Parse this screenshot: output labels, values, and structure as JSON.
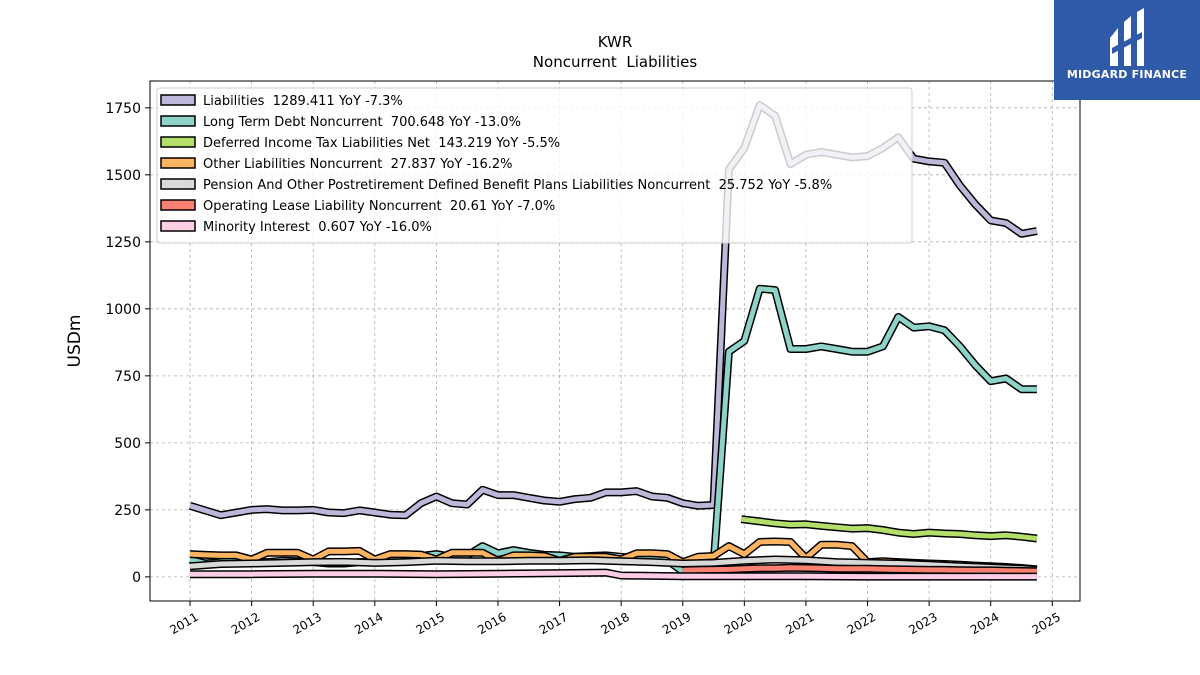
{
  "brand": {
    "name": "MIDGARD FINANCE",
    "color": "#2f5aa8"
  },
  "chart_data": {
    "type": "line",
    "title": "KWR",
    "subtitle": "Noncurrent  Liabilities",
    "xlabel": "",
    "ylabel": "USDm",
    "xlim": [
      2010.35,
      2025.45
    ],
    "ylim": [
      -90,
      1850
    ],
    "x_ticks": [
      "2011",
      "2012",
      "2013",
      "2014",
      "2015",
      "2016",
      "2017",
      "2018",
      "2019",
      "2020",
      "2021",
      "2022",
      "2023",
      "2024",
      "2025"
    ],
    "y_ticks": [
      0,
      250,
      500,
      750,
      1000,
      1250,
      1500,
      1750
    ],
    "y_tick_labels": [
      "0",
      "250",
      "500",
      "750",
      "1000",
      "1250",
      "1500",
      "1750"
    ],
    "grid": true,
    "legend_position": "top-left",
    "series": [
      {
        "name": "Liabilities  1289.411 YoY -7.3%",
        "color": "#bcb8d9",
        "x": [
          2011.0,
          2011.5,
          2012.0,
          2012.25,
          2012.5,
          2012.75,
          2013.0,
          2013.25,
          2013.5,
          2013.75,
          2014.0,
          2014.25,
          2014.5,
          2014.75,
          2015.0,
          2015.25,
          2015.5,
          2015.75,
          2016.0,
          2016.25,
          2016.5,
          2016.75,
          2017.0,
          2017.25,
          2017.5,
          2017.75,
          2018.0,
          2018.25,
          2018.5,
          2018.75,
          2019.0,
          2019.25,
          2019.5,
          2019.75,
          2020.0,
          2020.25,
          2020.5,
          2020.75,
          2021.0,
          2021.25,
          2021.5,
          2021.75,
          2022.0,
          2022.25,
          2022.5,
          2022.75,
          2023.0,
          2023.25,
          2023.5,
          2023.75,
          2024.0,
          2024.25,
          2024.5,
          2024.75
        ],
        "y": [
          265,
          230,
          250,
          253,
          248,
          248,
          250,
          240,
          238,
          248,
          240,
          232,
          230,
          275,
          300,
          275,
          270,
          325,
          305,
          305,
          295,
          285,
          280,
          290,
          295,
          315,
          315,
          320,
          300,
          295,
          275,
          265,
          268,
          1520,
          1600,
          1760,
          1720,
          1540,
          1575,
          1585,
          1575,
          1565,
          1570,
          1600,
          1640,
          1560,
          1550,
          1545,
          1460,
          1390,
          1330,
          1320,
          1280,
          1290
        ]
      },
      {
        "name": "Long Term Debt Noncurrent  700.648 YoY -13.0%",
        "color": "#8dd3c7",
        "x": [
          2011.0,
          2011.25,
          2011.5,
          2011.75,
          2012.0,
          2012.25,
          2012.5,
          2012.75,
          2013.0,
          2013.25,
          2013.5,
          2013.75,
          2014.0,
          2014.25,
          2014.5,
          2014.75,
          2015.0,
          2015.25,
          2015.5,
          2015.75,
          2016.0,
          2016.25,
          2016.5,
          2016.75,
          2017.0,
          2017.25,
          2017.5,
          2017.75,
          2018.0,
          2018.25,
          2018.5,
          2018.75,
          2019.0,
          2019.25,
          2019.5,
          2019.75,
          2020.0,
          2020.25,
          2020.5,
          2020.75,
          2021.0,
          2021.25,
          2021.5,
          2021.75,
          2022.0,
          2022.25,
          2022.5,
          2022.75,
          2023.0,
          2023.25,
          2023.5,
          2023.75,
          2024.0,
          2024.25,
          2024.5,
          2024.75
        ],
        "y": [
          65,
          50,
          55,
          60,
          55,
          55,
          60,
          58,
          55,
          50,
          50,
          55,
          60,
          75,
          80,
          78,
          85,
          75,
          80,
          115,
          88,
          100,
          90,
          82,
          80,
          75,
          78,
          80,
          75,
          70,
          65,
          62,
          20,
          30,
          40,
          840,
          880,
          1075,
          1070,
          850,
          850,
          860,
          850,
          840,
          840,
          860,
          970,
          930,
          935,
          920,
          860,
          790,
          730,
          740,
          700,
          700
        ]
      },
      {
        "name": "Deferred Income Tax Liabilities Net  143.219 YoY -5.5%",
        "color": "#b3de69",
        "x": [
          2019.95,
          2020.25,
          2020.5,
          2020.75,
          2021.0,
          2021.25,
          2021.5,
          2021.75,
          2022.0,
          2022.25,
          2022.5,
          2022.75,
          2023.0,
          2023.25,
          2023.5,
          2023.75,
          2024.0,
          2024.25,
          2024.5,
          2024.75
        ],
        "y": [
          215,
          207,
          200,
          195,
          196,
          190,
          185,
          180,
          182,
          175,
          165,
          160,
          165,
          162,
          160,
          155,
          152,
          155,
          150,
          143
        ]
      },
      {
        "name": "Other Liabilities Noncurrent  27.837 YoY -16.2%",
        "color": "#fdb462",
        "x": [
          2011.0,
          2011.25,
          2011.5,
          2011.75,
          2012.0,
          2012.25,
          2012.5,
          2012.75,
          2013.0,
          2013.25,
          2013.5,
          2013.75,
          2014.0,
          2014.25,
          2014.5,
          2014.75,
          2015.0,
          2015.25,
          2015.5,
          2015.75,
          2016.0,
          2016.25,
          2016.5,
          2016.75,
          2017.0,
          2017.25,
          2017.5,
          2017.75,
          2018.0,
          2018.25,
          2018.5,
          2018.75,
          2019.0,
          2019.25,
          2019.5,
          2019.75,
          2020.0,
          2020.25,
          2020.5,
          2020.75,
          2021.0,
          2021.25,
          2021.5,
          2021.75,
          2022.0,
          2022.25,
          2022.5,
          2022.75,
          2023.0,
          2023.25,
          2023.5,
          2023.75,
          2024.0,
          2024.25,
          2024.5,
          2024.75
        ],
        "y": [
          85,
          82,
          80,
          80,
          65,
          90,
          90,
          90,
          65,
          95,
          95,
          97,
          65,
          85,
          85,
          83,
          65,
          90,
          90,
          90,
          60,
          80,
          80,
          78,
          60,
          75,
          75,
          75,
          65,
          88,
          88,
          85,
          55,
          75,
          78,
          115,
          85,
          130,
          132,
          130,
          70,
          120,
          120,
          115,
          55,
          58,
          55,
          52,
          50,
          48,
          45,
          42,
          40,
          37,
          33,
          28
        ]
      },
      {
        "name": "Pension And Other Postretirement Defined Benefit Plans Liabilities Noncurrent  25.752 YoY -5.8%",
        "color": "#d9d9d9",
        "x": [
          2011.0,
          2011.5,
          2012.0,
          2012.5,
          2013.0,
          2013.5,
          2014.0,
          2014.5,
          2015.0,
          2015.5,
          2016.0,
          2016.5,
          2017.0,
          2017.5,
          2018.0,
          2018.5,
          2019.0,
          2019.5,
          2020.0,
          2020.5,
          2021.0,
          2021.5,
          2022.0,
          2022.5,
          2023.0,
          2023.5,
          2024.0,
          2024.5,
          2024.75
        ],
        "y": [
          40,
          48,
          50,
          52,
          55,
          56,
          52,
          55,
          60,
          58,
          58,
          60,
          60,
          62,
          58,
          55,
          50,
          52,
          60,
          65,
          62,
          55,
          52,
          50,
          45,
          40,
          35,
          30,
          26
        ]
      },
      {
        "name": "Operating Lease Liability Noncurrent  20.61 YoY -7.0%",
        "color": "#fb8072",
        "x": [
          2019.0,
          2019.25,
          2019.5,
          2019.75,
          2020.0,
          2020.25,
          2020.5,
          2020.75,
          2021.0,
          2021.25,
          2021.5,
          2021.75,
          2022.0,
          2022.25,
          2022.5,
          2022.75,
          2023.0,
          2023.25,
          2023.5,
          2023.75,
          2024.0,
          2024.25,
          2024.5,
          2024.75
        ],
        "y": [
          25,
          26,
          27,
          28,
          30,
          32,
          32,
          34,
          33,
          32,
          30,
          30,
          30,
          29,
          28,
          27,
          26,
          26,
          25,
          24,
          24,
          23,
          22,
          21
        ]
      },
      {
        "name": "Minority Interest  0.607 YoY -16.0%",
        "color": "#fccde5",
        "x": [
          2011.0,
          2012.0,
          2013.0,
          2014.0,
          2015.0,
          2016.0,
          2017.0,
          2017.75,
          2018.0,
          2019.0,
          2020.0,
          2021.0,
          2022.0,
          2023.0,
          2024.0,
          2024.75
        ],
        "y": [
          10,
          10,
          12,
          12,
          10,
          12,
          14,
          16,
          5,
          2,
          2,
          2,
          1,
          1,
          1,
          1
        ]
      }
    ]
  }
}
